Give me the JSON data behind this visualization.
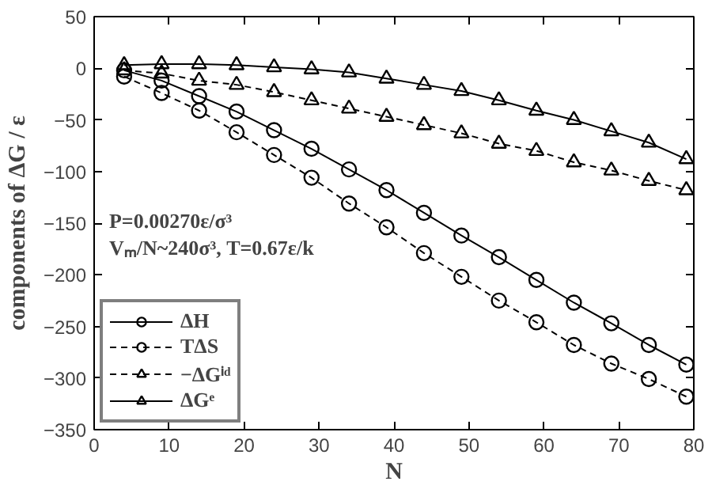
{
  "chart_data": {
    "type": "line",
    "xlabel": "N",
    "ylabel": "components of ΔG / ε",
    "x": [
      4,
      9,
      14,
      19,
      24,
      29,
      34,
      39,
      44,
      49,
      54,
      59,
      64,
      69,
      74,
      79
    ],
    "series": [
      {
        "name": "ΔH",
        "color": "#000000",
        "marker": "circle",
        "line_style": "solid",
        "values": [
          -2,
          -12,
          -27,
          -42,
          -60,
          -78,
          -98,
          -118,
          -140,
          -162,
          -183,
          -205,
          -227,
          -247,
          -268,
          -287
        ]
      },
      {
        "name": "TΔS",
        "color": "#000000",
        "marker": "circle",
        "line_style": "dashed",
        "values": [
          -8,
          -24,
          -41,
          -62,
          -84,
          -106,
          -131,
          -154,
          -179,
          -202,
          -225,
          -246,
          -268,
          -286,
          -301,
          -318
        ]
      },
      {
        "name": "−ΔGⁱᵈ",
        "color": "#000000",
        "marker": "triangle",
        "line_style": "dashed",
        "values": [
          -2,
          -5,
          -12,
          -16,
          -23,
          -31,
          -39,
          -47,
          -55,
          -63,
          -73,
          -80,
          -91,
          -99,
          -109,
          -118
        ]
      },
      {
        "name": "ΔGᵉ",
        "color": "#000000",
        "marker": "triangle",
        "line_style": "solid",
        "values": [
          3,
          4,
          4,
          3,
          1,
          -1,
          -4,
          -10,
          -16,
          -22,
          -31,
          -41,
          -50,
          -61,
          -72,
          -88
        ]
      }
    ],
    "xlim": [
      0,
      80
    ],
    "xticks": [
      0,
      10,
      20,
      30,
      40,
      50,
      60,
      70,
      80
    ],
    "ylim": [
      -350,
      50
    ],
    "yticks": [
      -350,
      -300,
      -250,
      -200,
      -150,
      -100,
      -50,
      0,
      50
    ],
    "annotations": [
      "P=0.00270ε/σ³",
      "Vₘ/N~240σ³, T=0.67ε/k"
    ],
    "legend": "bottom left",
    "grid": false
  }
}
